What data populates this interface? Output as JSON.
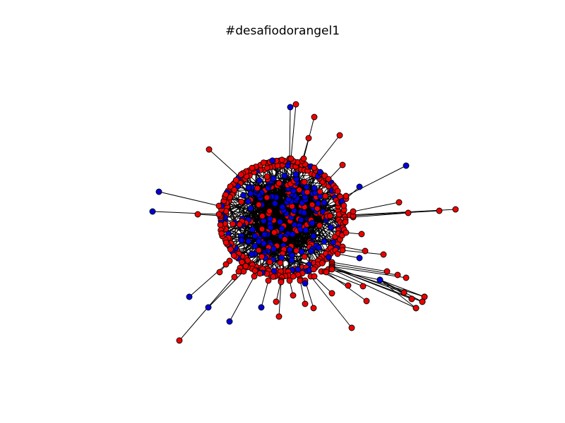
{
  "figure": {
    "title": "#desafiodorangel1"
  },
  "chart_data": {
    "type": "network",
    "title": "#desafiodorangel1",
    "node_colors": {
      "red": "#ee0000",
      "blue": "#0000dd",
      "edge": "#000000",
      "node_outline": "#000000"
    },
    "layout": "force-directed: dense central cluster of mostly blue nodes, surrounded by a ring of mostly red nodes, with a few long pendant spokes",
    "legend": "none",
    "axes": "none"
  }
}
